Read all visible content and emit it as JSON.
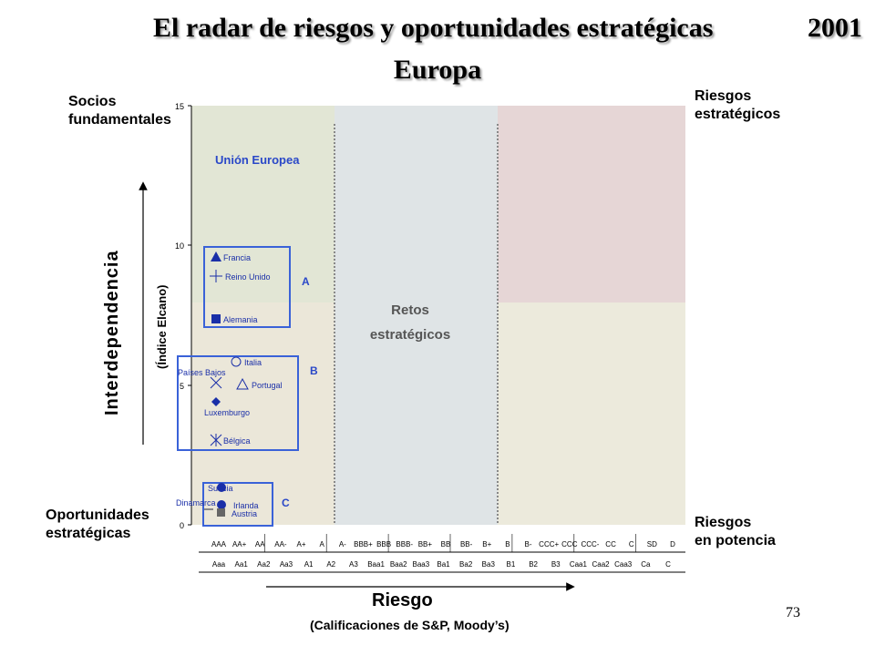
{
  "header": {
    "title": "El radar de riesgos y oportunidades estratégicas",
    "year": "2001",
    "subtitle": "Europa"
  },
  "corners": {
    "top_left": "Socios\nfundamentales",
    "top_right": "Riesgos\nestratégicos",
    "bottom_left": "Oportunidades\nestratégicas",
    "bottom_right": "Riesgos\nen potencia"
  },
  "axis_y": {
    "title": "Interdependencia",
    "subtitle": "(Índice Elcano)"
  },
  "axis_x": {
    "title": "Riesgo",
    "subtitle": "(Calificaciones de S&P, Moody’s)"
  },
  "page_number": "73",
  "colors": {
    "zone_green": "#e2e6d5",
    "zone_tan": "#ebe7d9",
    "zone_blue": "#dfe4e6",
    "zone_pink": "#e6d6d6",
    "zone_cream": "#eceadc",
    "box_blue": "#3a62d8",
    "label_blue": "#2a48c8",
    "dark_blue": "#1a2fa8"
  },
  "chart_data": {
    "type": "scatter",
    "title": "",
    "ylim": [
      0,
      15
    ],
    "yticks": [
      "0",
      "5",
      "10",
      "15"
    ],
    "x_ticks_sp": [
      "AAA",
      "AA+",
      "AA",
      "AA-",
      "A+",
      "A",
      "A-",
      "BBB+",
      "BBB",
      "BBB-",
      "BB+",
      "BB",
      "BB-",
      "B+",
      "B",
      "B-",
      "CCC+",
      "CCC",
      "CCC-",
      "CC",
      "C",
      "SD",
      "D"
    ],
    "x_ticks_moodys": [
      "Aaa",
      "Aa1",
      "Aa2",
      "Aa3",
      "A1",
      "A2",
      "A3",
      "Baa1",
      "Baa2",
      "Baa3",
      "Ba1",
      "Ba2",
      "Ba3",
      "B1",
      "B2",
      "B3",
      "Caa1",
      "Caa2",
      "Caa3",
      "Ca",
      "C"
    ],
    "zones": {
      "ue_label": "Unión Europea",
      "retos_line1": "Retos",
      "retos_line2": "estratégicos"
    },
    "groups": [
      {
        "label": "A",
        "members": [
          "Francia",
          "Reino Unido",
          "Alemania"
        ]
      },
      {
        "label": "B",
        "members": [
          "Italia",
          "Países Bajos",
          "Portugal",
          "Luxemburgo",
          "Bélgica"
        ]
      },
      {
        "label": "C",
        "members": [
          "Suecia",
          "Dinamarca",
          "Irlanda",
          "Austria"
        ]
      }
    ],
    "points": [
      {
        "name": "Francia",
        "rating": "AAA",
        "y": 9.7,
        "marker": "triangle"
      },
      {
        "name": "Reino Unido",
        "rating": "AAA",
        "y": 8.9,
        "marker": "plus"
      },
      {
        "name": "Alemania",
        "rating": "AAA",
        "y": 7.4,
        "marker": "square"
      },
      {
        "name": "Italia",
        "rating": "AA",
        "y": 5.8,
        "marker": "circle-open"
      },
      {
        "name": "Países Bajos",
        "rating": "AAA",
        "y": 5.0,
        "marker": "x"
      },
      {
        "name": "Portugal",
        "rating": "AA",
        "y": 5.1,
        "marker": "triangle-open"
      },
      {
        "name": "Luxemburgo",
        "rating": "AAA",
        "y": 4.6,
        "marker": "diamond"
      },
      {
        "name": "Bélgica",
        "rating": "AAA",
        "y": 3.0,
        "marker": "asterisk"
      },
      {
        "name": "Suecia",
        "rating": "AA+",
        "y": 0.8,
        "marker": "circle"
      },
      {
        "name": "Dinamarca",
        "rating": "AAA",
        "y": 0.7,
        "marker": "dash"
      },
      {
        "name": "Irlanda",
        "rating": "AA+",
        "y": 0.7,
        "marker": "circle"
      },
      {
        "name": "Austria",
        "rating": "AAA",
        "y": 0.4,
        "marker": "square-gray"
      }
    ]
  }
}
